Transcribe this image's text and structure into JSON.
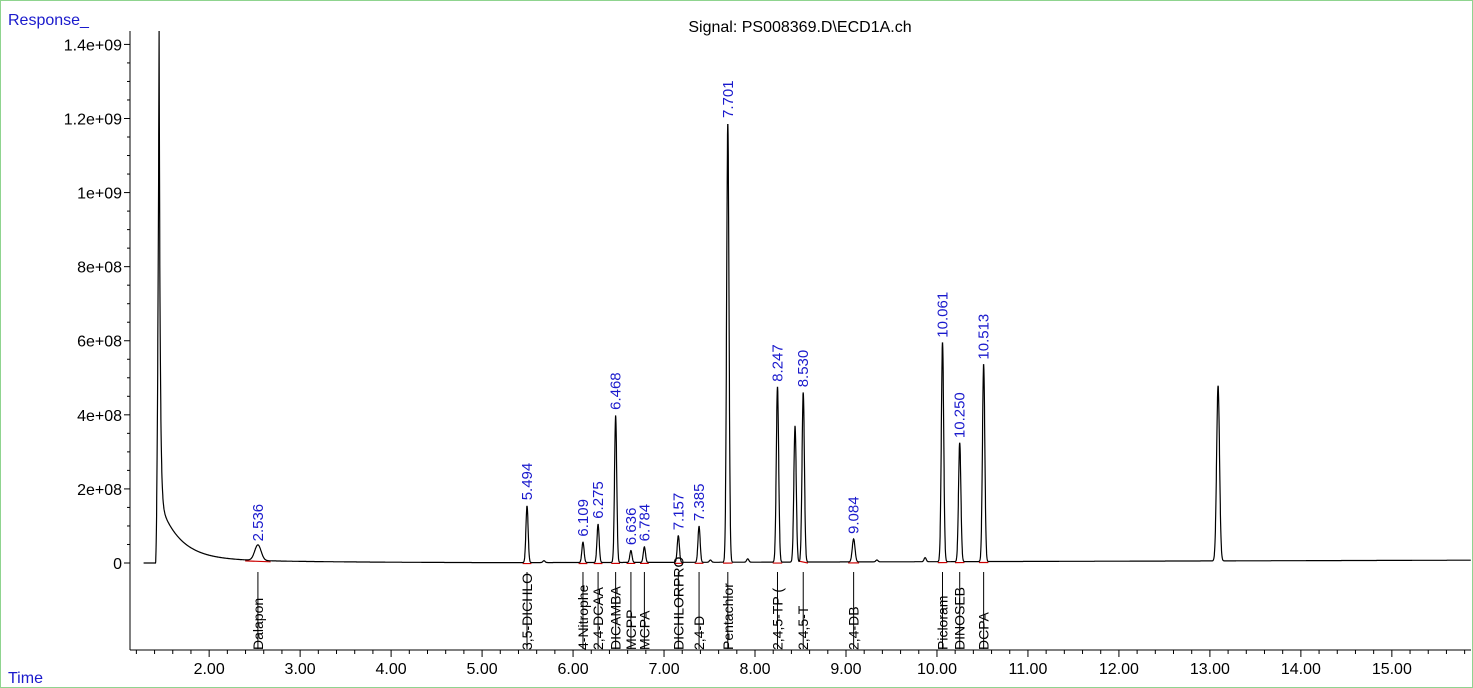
{
  "chart_data": {
    "type": "line",
    "title": "Signal: PS008369.D\\ECD1A.ch",
    "ylabel": "Response_",
    "xlabel": "Time",
    "xlim": [
      1.13,
      15.87
    ],
    "ylim": [
      0,
      1420000000
    ],
    "x_ticks": [
      "2.00",
      "3.00",
      "4.00",
      "5.00",
      "6.00",
      "7.00",
      "8.00",
      "9.00",
      "10.00",
      "11.00",
      "12.00",
      "13.00",
      "14.00",
      "15.00"
    ],
    "y_ticks": [
      "0",
      "2e+08",
      "4e+08",
      "6e+08",
      "8e+08",
      "1e+09",
      "1.2e+09",
      "1.4e+09"
    ],
    "series_color": "#000000",
    "rt_label_color": "#1a1acc",
    "baseline_color": "#cc0000",
    "solvent_peak": {
      "x": 1.45,
      "y": 1425000000
    },
    "peaks": [
      {
        "rt": 2.536,
        "height": 42000000,
        "label": "2.536",
        "compound": "Dalapon",
        "width": 0.035
      },
      {
        "rt": 5.494,
        "height": 153000000,
        "label": "5.494",
        "compound": "3,5-DICHLO",
        "width": 0.012
      },
      {
        "rt": 6.109,
        "height": 55000000,
        "label": "6.109",
        "compound": "4-Nitrophe",
        "width": 0.012
      },
      {
        "rt": 6.275,
        "height": 103000000,
        "label": "6.275",
        "compound": "2,4-DCAA",
        "width": 0.012
      },
      {
        "rt": 6.468,
        "height": 397000000,
        "label": "6.468",
        "compound": "DICAMBA",
        "width": 0.012
      },
      {
        "rt": 6.636,
        "height": 32000000,
        "label": "6.636",
        "compound": "MCPP",
        "width": 0.012
      },
      {
        "rt": 6.784,
        "height": 42000000,
        "label": "6.784",
        "compound": "MCPA",
        "width": 0.012
      },
      {
        "rt": 7.157,
        "height": 72000000,
        "label": "7.157",
        "compound": "DICHLORPRO",
        "width": 0.012
      },
      {
        "rt": 7.385,
        "height": 97000000,
        "label": "7.385",
        "compound": "2,4-D",
        "width": 0.012
      },
      {
        "rt": 7.701,
        "height": 1185000000,
        "label": "7.701",
        "compound": "Pentachlor",
        "width": 0.013
      },
      {
        "rt": 8.247,
        "height": 473000000,
        "label": "8.247",
        "compound": "2,4,5-TP (",
        "width": 0.013
      },
      {
        "rt": 8.53,
        "height": 458000000,
        "label": "8.530",
        "compound": "2,4,5-T",
        "width": 0.013
      },
      {
        "rt": 9.084,
        "height": 62000000,
        "label": "9.084",
        "compound": "2,4-DB",
        "width": 0.015
      },
      {
        "rt": 10.061,
        "height": 592000000,
        "label": "10.061",
        "compound": "Picloram",
        "width": 0.013
      },
      {
        "rt": 10.25,
        "height": 321000000,
        "label": "10.250",
        "compound": "DINOSEB",
        "width": 0.013
      },
      {
        "rt": 10.513,
        "height": 533000000,
        "label": "10.513",
        "compound": "DCPA",
        "width": 0.013
      }
    ],
    "unlabeled_peaks": [
      {
        "rt": 8.44,
        "height": 368000000,
        "width": 0.013
      },
      {
        "rt": 13.09,
        "height": 473000000,
        "width": 0.016
      },
      {
        "rt": 7.92,
        "height": 9000000,
        "width": 0.012
      },
      {
        "rt": 9.87,
        "height": 11000000,
        "width": 0.012
      },
      {
        "rt": 5.68,
        "height": 5000000,
        "width": 0.012
      },
      {
        "rt": 9.34,
        "height": 5000000,
        "width": 0.012
      },
      {
        "rt": 7.51,
        "height": 6000000,
        "width": 0.012
      }
    ]
  }
}
